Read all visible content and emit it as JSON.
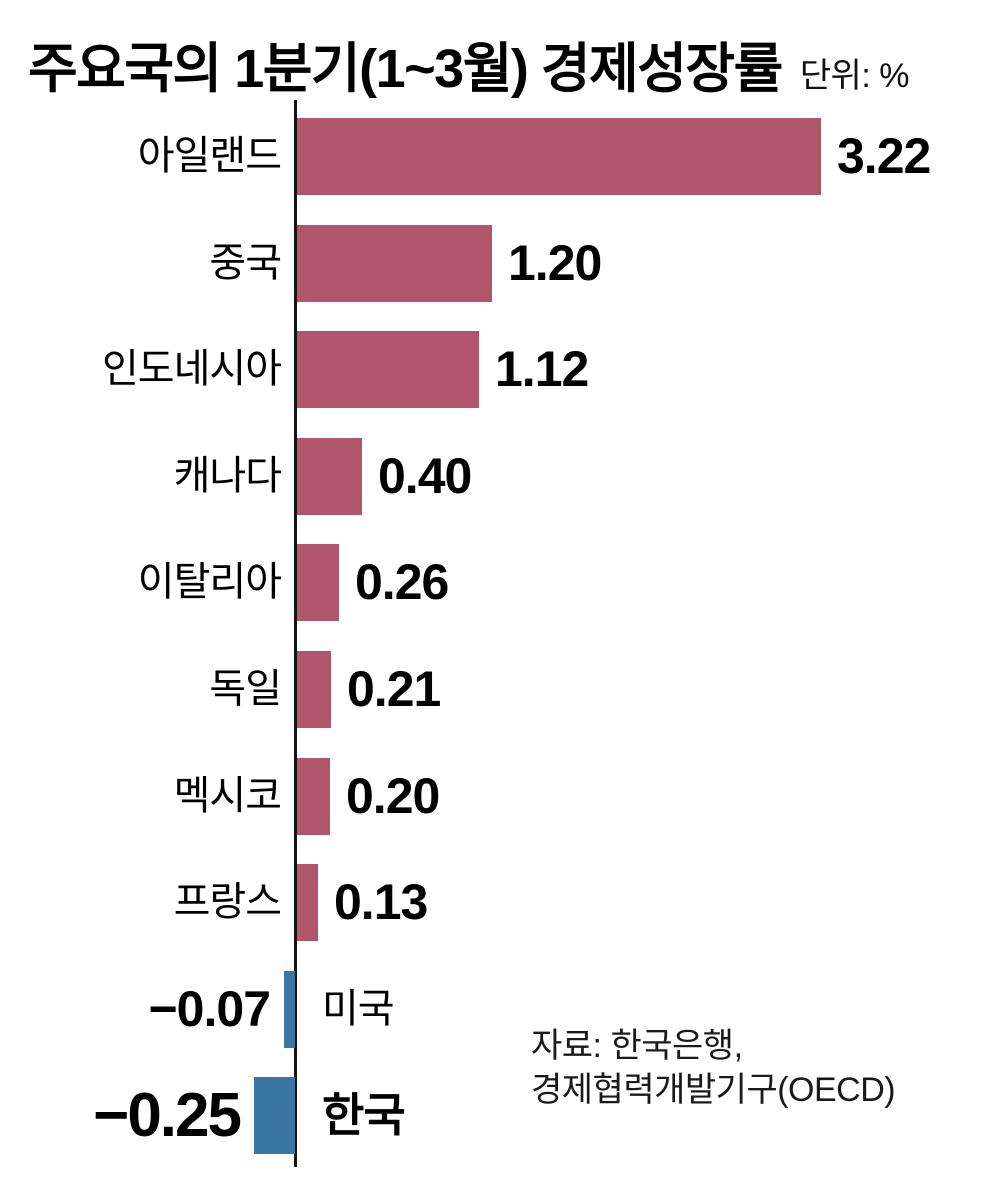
{
  "title": {
    "text": "주요국의 1분기(1~3월) 경제성장률",
    "unit_label": "단위: %"
  },
  "source": {
    "line1": "자료: 한국은행,",
    "line2": "경제협력개발기구(OECD)"
  },
  "chart_data": {
    "type": "bar",
    "orientation": "horizontal",
    "title": "주요국의 1분기(1~3월) 경제성장률",
    "unit": "%",
    "categories": [
      "아일랜드",
      "중국",
      "인도네시아",
      "캐나다",
      "이탈리아",
      "독일",
      "멕시코",
      "프랑스",
      "미국",
      "한국"
    ],
    "values": [
      3.22,
      1.2,
      1.12,
      0.4,
      0.26,
      0.21,
      0.2,
      0.13,
      -0.07,
      -0.25
    ],
    "value_labels": [
      "3.22",
      "1.20",
      "1.12",
      "0.40",
      "0.26",
      "0.21",
      "0.20",
      "0.13",
      "−0.07",
      "−0.25"
    ],
    "positive_color": "#b1566a",
    "negative_color": "#3a76a3",
    "axis_color": "#141414",
    "highlight_category": "한국",
    "xlim": [
      -0.25,
      3.22
    ],
    "grid": false,
    "legend": "none",
    "baseline": 0
  }
}
